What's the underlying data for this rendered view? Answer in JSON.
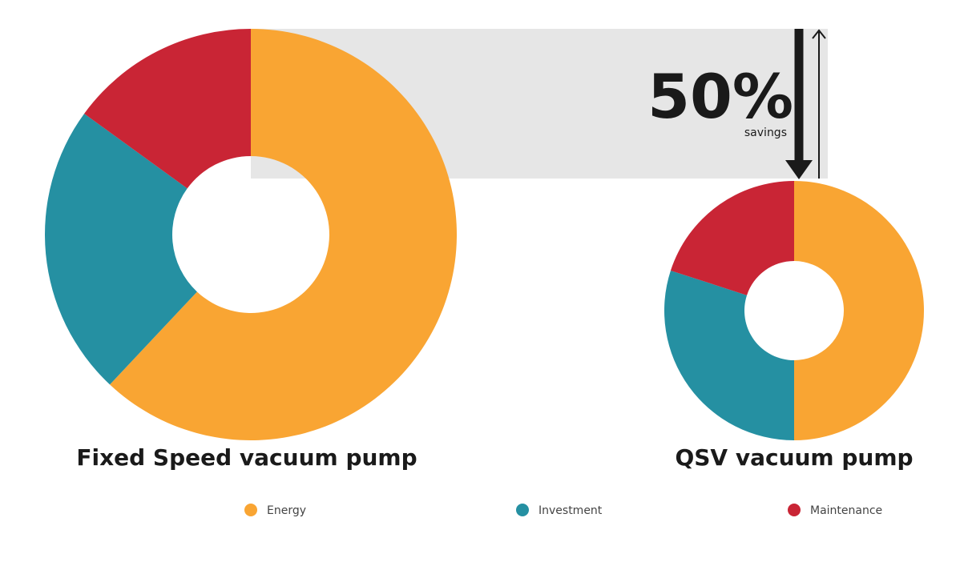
{
  "chart_data": {
    "type": "pie",
    "categories": [
      "Energy",
      "Investment",
      "Maintenance"
    ],
    "colors": [
      "#f9a533",
      "#2590a2",
      "#c92535"
    ],
    "series": [
      {
        "name": "Fixed Speed vacuum pump",
        "values": [
          62,
          23,
          15
        ]
      },
      {
        "name": "QSV vacuum pump",
        "values": [
          50,
          30,
          20
        ]
      }
    ],
    "annotation": "50%",
    "annotation_subtitle": "savings"
  }
}
